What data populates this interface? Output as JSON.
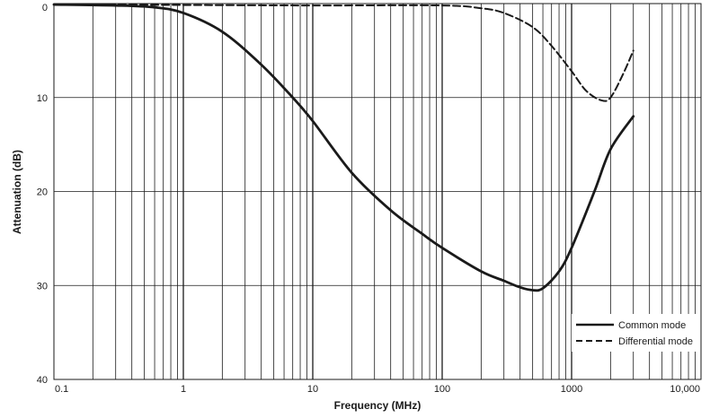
{
  "chart_data": {
    "type": "line",
    "title": "",
    "xlabel": "Frequency (MHz)",
    "ylabel": "Attenuation (dB)",
    "x_scale": "log",
    "xlim": [
      0.1,
      10000
    ],
    "ylim": [
      0,
      40
    ],
    "y_inverted": true,
    "x_tick_labels": [
      "0.1",
      "1",
      "10",
      "100",
      "1000",
      "10,000"
    ],
    "x_tick_values": [
      0.1,
      1,
      10,
      100,
      1000,
      10000
    ],
    "y_tick_labels": [
      "0",
      "10",
      "20",
      "30",
      "40"
    ],
    "y_tick_values": [
      0,
      10,
      20,
      30,
      40
    ],
    "grid": true,
    "legend_position": "bottom-right",
    "series": [
      {
        "name": "Common mode",
        "style": "solid",
        "color": "#1a1a1a",
        "x": [
          0.1,
          0.3,
          0.6,
          1,
          2,
          4,
          7,
          10,
          20,
          40,
          70,
          100,
          200,
          300,
          400,
          500,
          600,
          800,
          1000,
          1500,
          2000,
          3000
        ],
        "y": [
          0.1,
          0.2,
          0.4,
          1,
          3,
          6.5,
          10,
          12.5,
          18,
          22,
          24.5,
          26,
          28.5,
          29.5,
          30.2,
          30.5,
          30.3,
          28.5,
          26,
          20,
          15.5,
          12
        ]
      },
      {
        "name": "Differential mode",
        "style": "dashed",
        "color": "#1a1a1a",
        "x": [
          0.1,
          1,
          10,
          100,
          200,
          300,
          500,
          700,
          1000,
          1300,
          1700,
          2000,
          2500,
          3000
        ],
        "y": [
          0.1,
          0.15,
          0.2,
          0.2,
          0.5,
          1,
          2.5,
          4.5,
          7.2,
          9.3,
          10.3,
          10,
          7.5,
          5
        ]
      }
    ]
  }
}
